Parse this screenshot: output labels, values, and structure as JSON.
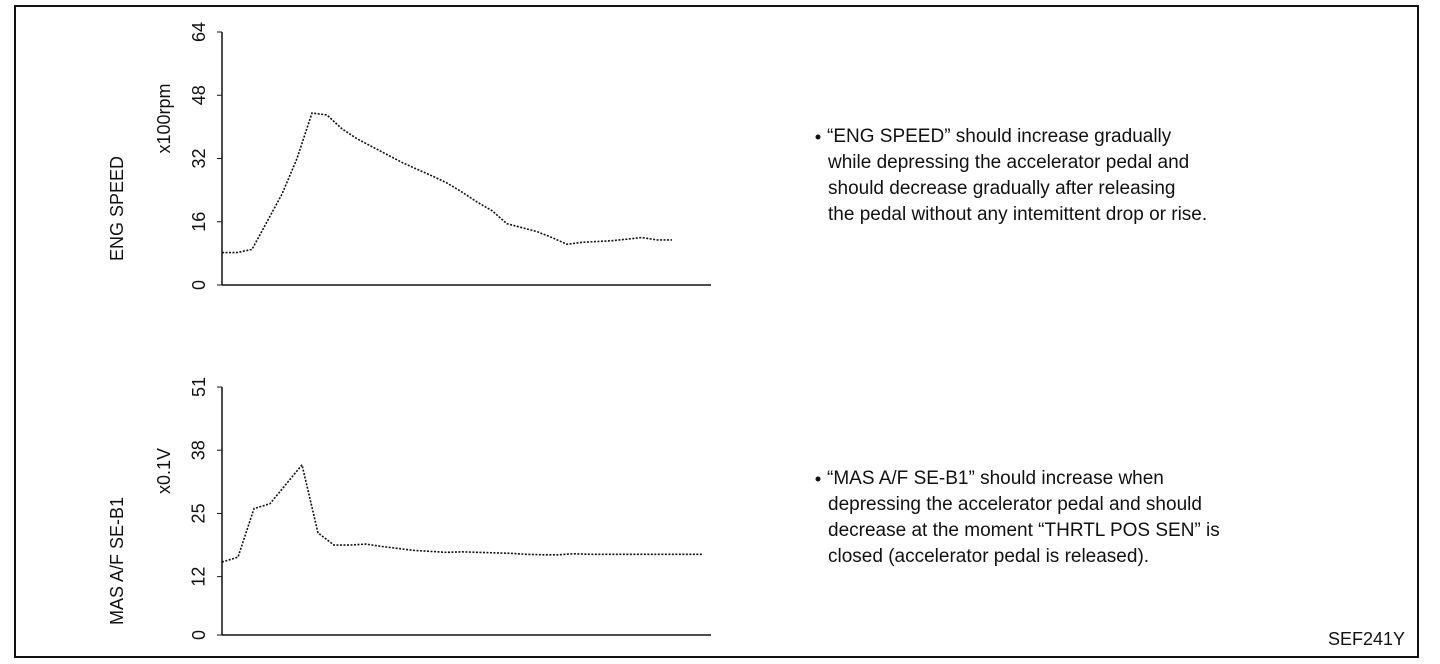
{
  "chart_data": [
    {
      "type": "line",
      "ylabel": "ENG SPEED",
      "unit": "x100rpm",
      "ylim": [
        0,
        64
      ],
      "yticks": [
        0,
        16,
        32,
        48,
        64
      ],
      "values": [
        8.2,
        8.2,
        9,
        16,
        23,
        32,
        43.5,
        43,
        39.5,
        37,
        35,
        33,
        31,
        29.3,
        27.6,
        25.8,
        23.5,
        21,
        18.8,
        15.5,
        14.5,
        13.5,
        12,
        10.3,
        10.8,
        11,
        11.2,
        11.6,
        12,
        11.4,
        11.4
      ],
      "color": "#111",
      "notes": [
        "“ENG SPEED” should increase gradually",
        "while depressing the accelerator pedal and",
        "should decrease gradually after releasing",
        "the pedal without any intemittent drop or rise."
      ]
    },
    {
      "type": "line",
      "ylabel": "MAS A/F SE-B1",
      "unit": "x0.1V",
      "ylim": [
        0,
        51
      ],
      "yticks": [
        0,
        12,
        25,
        38,
        51
      ],
      "values": [
        15,
        16,
        26,
        27,
        31,
        35,
        21,
        18.5,
        18.5,
        18.7,
        18.2,
        17.8,
        17.4,
        17.2,
        17,
        17.1,
        17,
        16.9,
        16.8,
        16.6,
        16.5,
        16.5,
        16.7,
        16.6,
        16.6,
        16.6,
        16.6,
        16.6,
        16.6,
        16.6,
        16.6
      ],
      "color": "#111",
      "notes": [
        "“MAS A/F SE-B1” should increase when",
        "depressing the accelerator pedal and  should",
        "decrease at the moment “THRTL POS SEN” is",
        "closed (accelerator pedal is released)."
      ]
    }
  ],
  "figure_id": "SEF241Y"
}
